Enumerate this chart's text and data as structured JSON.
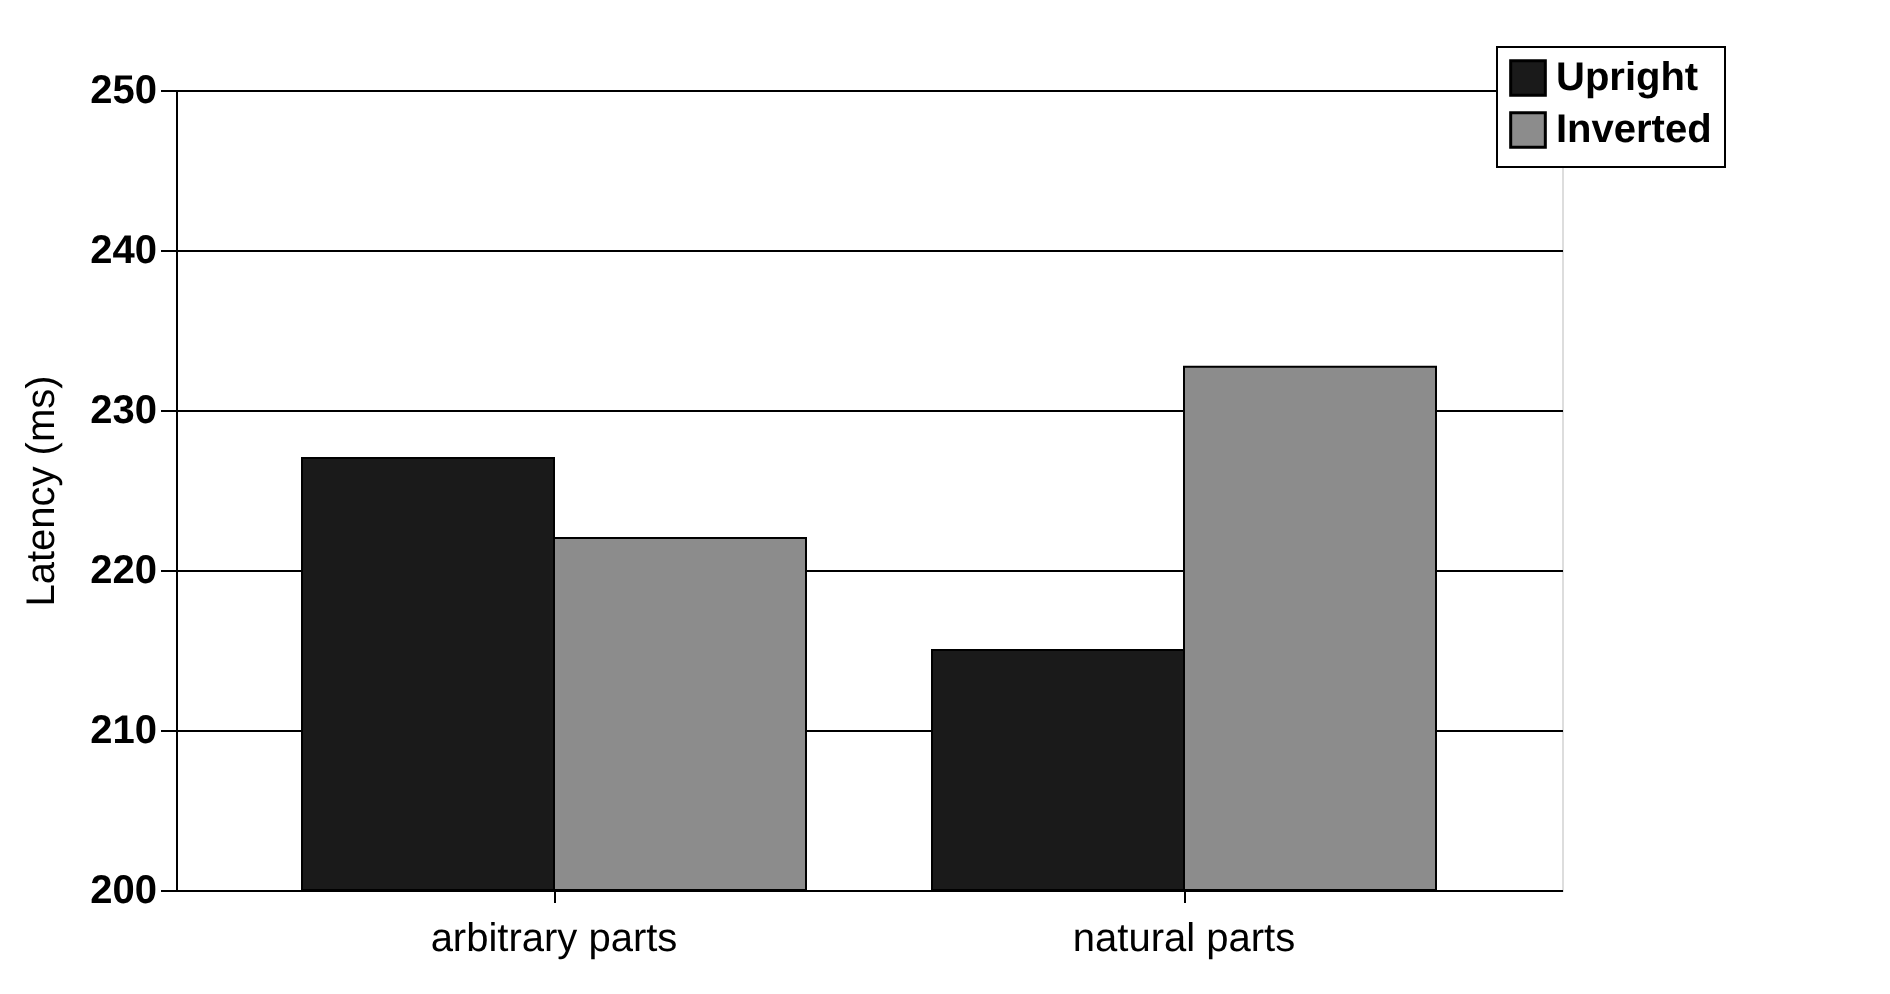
{
  "chart_data": {
    "type": "bar",
    "ylabel": "Latency (ms)",
    "categories": [
      "arbitrary parts",
      "natural parts"
    ],
    "series": [
      {
        "name": "Upright",
        "color": "#1a1a1a",
        "values": [
          227,
          215
        ]
      },
      {
        "name": "Inverted",
        "color": "#8c8c8c",
        "values": [
          222,
          232.7
        ]
      }
    ],
    "ylim": [
      200,
      250
    ],
    "yticks": [
      200,
      210,
      220,
      230,
      240,
      250
    ],
    "grid": "y",
    "legend": "top right"
  }
}
